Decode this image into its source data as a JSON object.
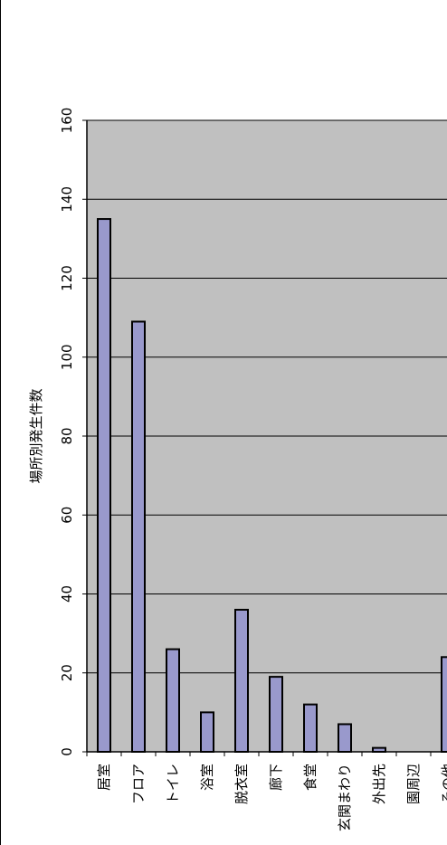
{
  "chart_data": {
    "type": "bar",
    "orientation": "rotated",
    "ylabel": "場所別発生件数",
    "ylim": [
      0,
      160
    ],
    "yticks": [
      "0",
      "20",
      "40",
      "60",
      "80",
      "100",
      "120",
      "140",
      "160"
    ],
    "categories": [
      "居室",
      "フロア",
      "トイレ",
      "浴室",
      "脱衣室",
      "廊下",
      "食堂",
      "玄関まわり",
      "外出先",
      "園周辺",
      "その他"
    ],
    "values": [
      135,
      109,
      26,
      10,
      36,
      19,
      12,
      7,
      1,
      0,
      24
    ],
    "colors": {
      "bar": "#9999cc",
      "plot_background": "#c0c0c0",
      "grid": "#000000"
    },
    "grid": true
  }
}
